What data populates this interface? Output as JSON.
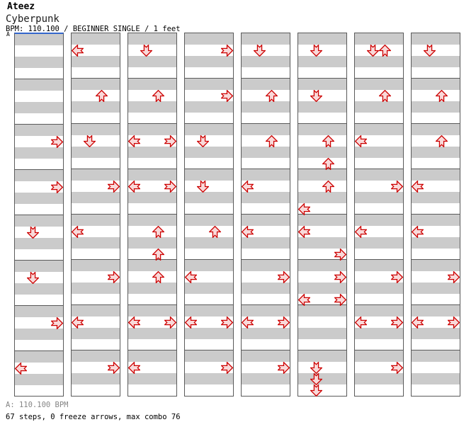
{
  "header": {
    "artist": "Ateez",
    "title": "Cyberpunk",
    "meta": "BPM: 110.100 / BEGINNER SINGLE / 1 feet"
  },
  "section_label": "A",
  "footer": {
    "bpm_line": "A: 110.100 BPM",
    "stats_line": "67 steps, 0 freeze arrows, max combo 76"
  },
  "colors": {
    "stripe_gray": "#cbcbcb",
    "stripe_white": "#ffffff",
    "grid_border": "#5a5a5a",
    "section_marker_blue": "#3366cc",
    "arrow_outline": "#cc0000",
    "arrow_fill": "#f9d9d9"
  },
  "chart_data": {
    "type": "step_chart",
    "title": "Cyberpunk",
    "artist": "Ateez",
    "difficulty": "BEGINNER SINGLE",
    "bpm": "110.100",
    "feet": 1,
    "columns": 8,
    "measures_per_column": 8,
    "beats_per_measure": 4,
    "lanes": [
      "L",
      "D",
      "U",
      "R"
    ],
    "notes": [
      {
        "m": 3,
        "b": 2,
        "a": [
          "R"
        ]
      },
      {
        "m": 4,
        "b": 2,
        "a": [
          "R"
        ]
      },
      {
        "m": 5,
        "b": 2,
        "a": [
          "D"
        ]
      },
      {
        "m": 6,
        "b": 2,
        "a": [
          "D"
        ]
      },
      {
        "m": 7,
        "b": 2,
        "a": [
          "R"
        ]
      },
      {
        "m": 8,
        "b": 2,
        "a": [
          "L"
        ]
      },
      {
        "m": 9,
        "b": 2,
        "a": [
          "L"
        ]
      },
      {
        "m": 10,
        "b": 2,
        "a": [
          "U"
        ]
      },
      {
        "m": 11,
        "b": 2,
        "a": [
          "D"
        ]
      },
      {
        "m": 12,
        "b": 2,
        "a": [
          "R"
        ]
      },
      {
        "m": 13,
        "b": 2,
        "a": [
          "L"
        ]
      },
      {
        "m": 14,
        "b": 2,
        "a": [
          "R"
        ]
      },
      {
        "m": 15,
        "b": 2,
        "a": [
          "L"
        ]
      },
      {
        "m": 16,
        "b": 2,
        "a": [
          "R"
        ]
      },
      {
        "m": 17,
        "b": 2,
        "a": [
          "D"
        ]
      },
      {
        "m": 18,
        "b": 2,
        "a": [
          "U"
        ]
      },
      {
        "m": 19,
        "b": 2,
        "a": [
          "L",
          "R"
        ]
      },
      {
        "m": 20,
        "b": 2,
        "a": [
          "L",
          "R"
        ]
      },
      {
        "m": 21,
        "b": 2,
        "a": [
          "U"
        ]
      },
      {
        "m": 21,
        "b": 4,
        "a": [
          "U"
        ]
      },
      {
        "m": 22,
        "b": 2,
        "a": [
          "U"
        ]
      },
      {
        "m": 23,
        "b": 2,
        "a": [
          "L",
          "R"
        ]
      },
      {
        "m": 24,
        "b": 2,
        "a": [
          "L"
        ]
      },
      {
        "m": 25,
        "b": 2,
        "a": [
          "R"
        ]
      },
      {
        "m": 26,
        "b": 2,
        "a": [
          "R"
        ]
      },
      {
        "m": 27,
        "b": 2,
        "a": [
          "D"
        ]
      },
      {
        "m": 28,
        "b": 2,
        "a": [
          "D"
        ]
      },
      {
        "m": 29,
        "b": 2,
        "a": [
          "U"
        ]
      },
      {
        "m": 30,
        "b": 2,
        "a": [
          "L"
        ]
      },
      {
        "m": 31,
        "b": 2,
        "a": [
          "L",
          "R"
        ]
      },
      {
        "m": 32,
        "b": 2,
        "a": [
          "R"
        ]
      },
      {
        "m": 33,
        "b": 2,
        "a": [
          "D"
        ]
      },
      {
        "m": 34,
        "b": 2,
        "a": [
          "U"
        ]
      },
      {
        "m": 35,
        "b": 2,
        "a": [
          "U"
        ]
      },
      {
        "m": 36,
        "b": 2,
        "a": [
          "L"
        ]
      },
      {
        "m": 37,
        "b": 2,
        "a": [
          "L"
        ]
      },
      {
        "m": 38,
        "b": 2,
        "a": [
          "R"
        ]
      },
      {
        "m": 39,
        "b": 2,
        "a": [
          "L",
          "R"
        ]
      },
      {
        "m": 40,
        "b": 2,
        "a": [
          "R"
        ]
      },
      {
        "m": 41,
        "b": 2,
        "a": [
          "D"
        ]
      },
      {
        "m": 42,
        "b": 2,
        "a": [
          "D"
        ]
      },
      {
        "m": 43,
        "b": 2,
        "a": [
          "U"
        ]
      },
      {
        "m": 43,
        "b": 4,
        "a": [
          "U"
        ]
      },
      {
        "m": 44,
        "b": 2,
        "a": [
          "U"
        ]
      },
      {
        "m": 44,
        "b": 4,
        "a": [
          "L"
        ]
      },
      {
        "m": 45,
        "b": 2,
        "a": [
          "L"
        ]
      },
      {
        "m": 45,
        "b": 4,
        "a": [
          "R"
        ]
      },
      {
        "m": 46,
        "b": 2,
        "a": [
          "R"
        ]
      },
      {
        "m": 46,
        "b": 4,
        "a": [
          "L",
          "R"
        ]
      },
      {
        "m": 48,
        "b": 2,
        "a": [
          "D"
        ]
      },
      {
        "m": 48,
        "b": 3,
        "a": [
          "D"
        ]
      },
      {
        "m": 48,
        "b": 4,
        "a": [
          "D"
        ]
      },
      {
        "m": 49,
        "b": 2,
        "a": [
          "D",
          "U"
        ]
      },
      {
        "m": 50,
        "b": 2,
        "a": [
          "U"
        ]
      },
      {
        "m": 51,
        "b": 2,
        "a": [
          "L"
        ]
      },
      {
        "m": 52,
        "b": 2,
        "a": [
          "R"
        ]
      },
      {
        "m": 53,
        "b": 2,
        "a": [
          "L"
        ]
      },
      {
        "m": 54,
        "b": 2,
        "a": [
          "R"
        ]
      },
      {
        "m": 55,
        "b": 2,
        "a": [
          "L",
          "R"
        ]
      },
      {
        "m": 56,
        "b": 2,
        "a": [
          "R"
        ]
      },
      {
        "m": 57,
        "b": 2,
        "a": [
          "D"
        ]
      },
      {
        "m": 58,
        "b": 2,
        "a": [
          "U"
        ]
      },
      {
        "m": 59,
        "b": 2,
        "a": [
          "U"
        ]
      },
      {
        "m": 60,
        "b": 2,
        "a": [
          "L"
        ]
      },
      {
        "m": 61,
        "b": 2,
        "a": [
          "L"
        ]
      },
      {
        "m": 62,
        "b": 2,
        "a": [
          "R"
        ]
      },
      {
        "m": 63,
        "b": 2,
        "a": [
          "L",
          "R"
        ]
      }
    ]
  }
}
